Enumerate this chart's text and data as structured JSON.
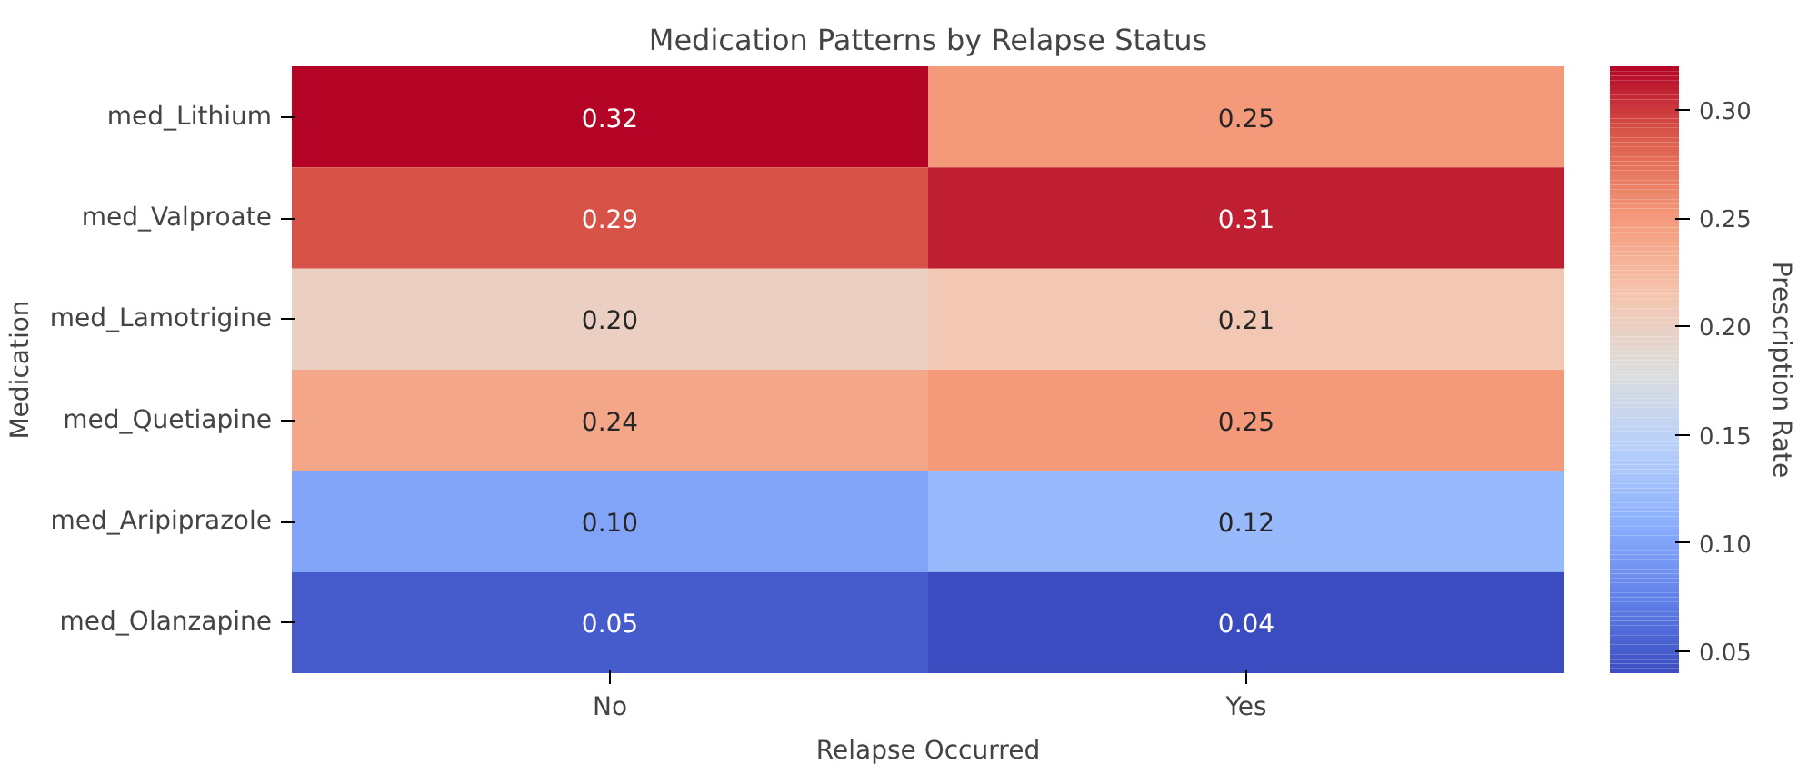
{
  "chart_data": {
    "type": "heatmap",
    "title": "Medication Patterns by Relapse Status",
    "xlabel": "Relapse Occurred",
    "ylabel": "Medication",
    "clabel": "Prescription Rate",
    "categories": [
      "No",
      "Yes"
    ],
    "y_categories": [
      "med_Lithium",
      "med_Valproate",
      "med_Lamotrigine",
      "med_Quetiapine",
      "med_Aripiprazole",
      "med_Olanzapine"
    ],
    "cells": [
      [
        0.32,
        0.25
      ],
      [
        0.29,
        0.31
      ],
      [
        0.2,
        0.21
      ],
      [
        0.24,
        0.25
      ],
      [
        0.1,
        0.12
      ],
      [
        0.05,
        0.04
      ]
    ],
    "cell_labels": [
      [
        "0.32",
        "0.25"
      ],
      [
        "0.29",
        "0.31"
      ],
      [
        "0.20",
        "0.21"
      ],
      [
        "0.24",
        "0.25"
      ],
      [
        "0.10",
        "0.12"
      ],
      [
        "0.05",
        "0.04"
      ]
    ],
    "clim": [
      0.04,
      0.32
    ],
    "cticks": [
      {
        "value": 0.05,
        "label": "0.05"
      },
      {
        "value": 0.1,
        "label": "0.10"
      },
      {
        "value": 0.15,
        "label": "0.15"
      },
      {
        "value": 0.2,
        "label": "0.20"
      },
      {
        "value": 0.25,
        "label": "0.25"
      },
      {
        "value": 0.3,
        "label": "0.30"
      }
    ]
  }
}
